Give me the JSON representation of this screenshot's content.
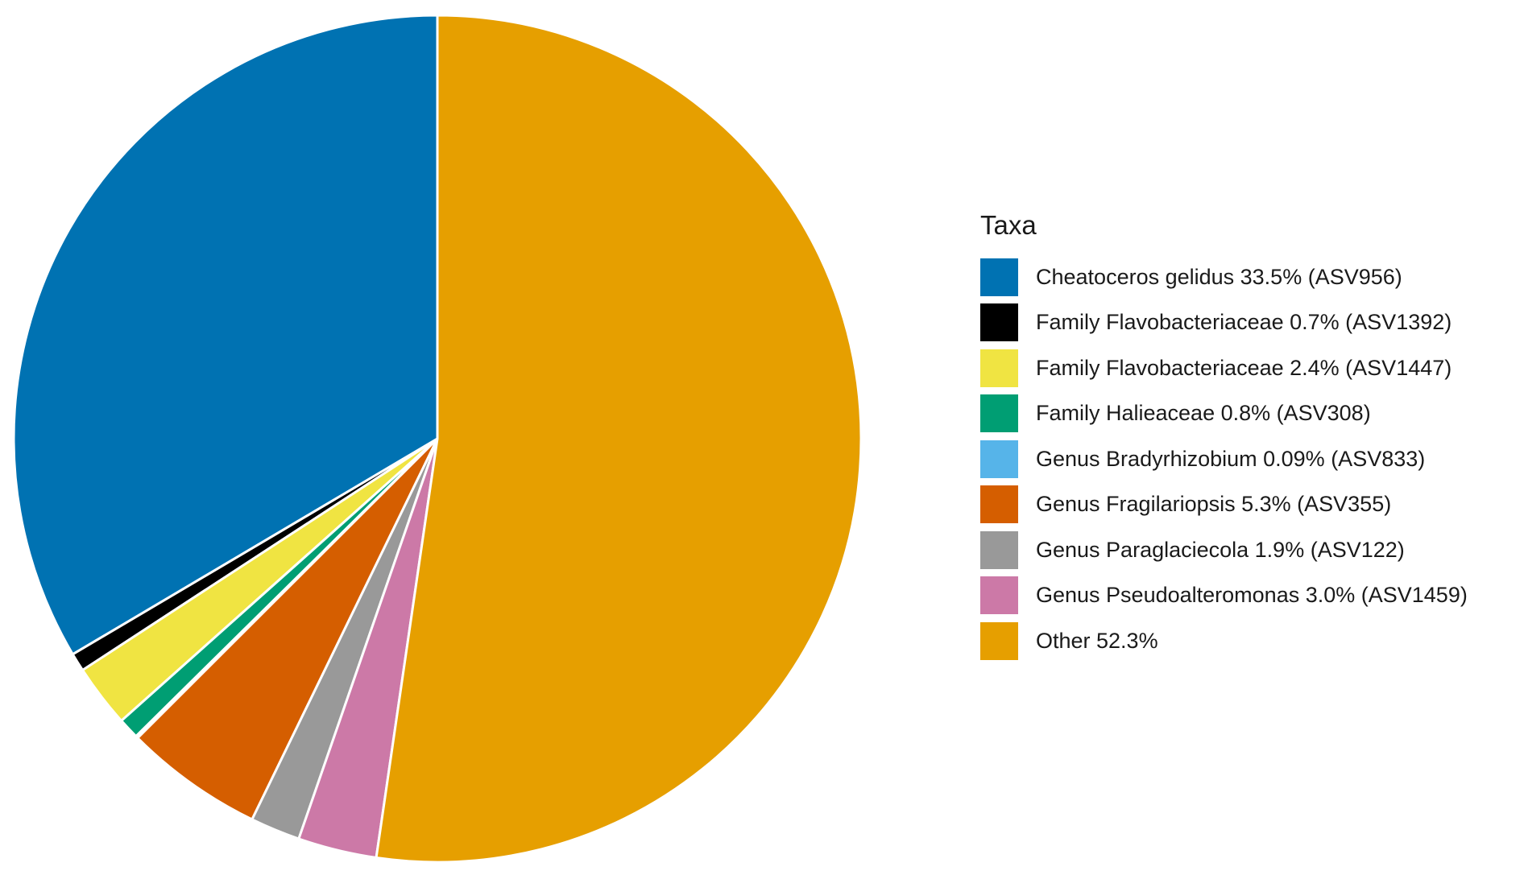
{
  "chart_data": {
    "type": "pie",
    "legend_title": "Taxa",
    "legend_position": "right",
    "start_angle_deg": 0,
    "direction": "counterclockwise",
    "slices": [
      {
        "label": "Cheatoceros gelidus 33.5% (ASV956)",
        "value": 33.5,
        "color": "#0072B2"
      },
      {
        "label": "Family Flavobacteriaceae 0.7% (ASV1392)",
        "value": 0.7,
        "color": "#000000"
      },
      {
        "label": "Family Flavobacteriaceae 2.4% (ASV1447)",
        "value": 2.4,
        "color": "#F0E442"
      },
      {
        "label": "Family Halieaceae 0.8% (ASV308)",
        "value": 0.8,
        "color": "#009E73"
      },
      {
        "label": "Genus Bradyrhizobium 0.09% (ASV833)",
        "value": 0.09,
        "color": "#56B4E9"
      },
      {
        "label": "Genus Fragilariopsis 5.3% (ASV355)",
        "value": 5.3,
        "color": "#D55E00"
      },
      {
        "label": "Genus Paraglaciecola 1.9% (ASV122)",
        "value": 1.9,
        "color": "#999999"
      },
      {
        "label": "Genus Pseudoalteromonas 3.0% (ASV1459)",
        "value": 3.0,
        "color": "#CC79A7"
      },
      {
        "label": "Other 52.3%",
        "value": 52.3,
        "color": "#E69F00"
      }
    ]
  }
}
